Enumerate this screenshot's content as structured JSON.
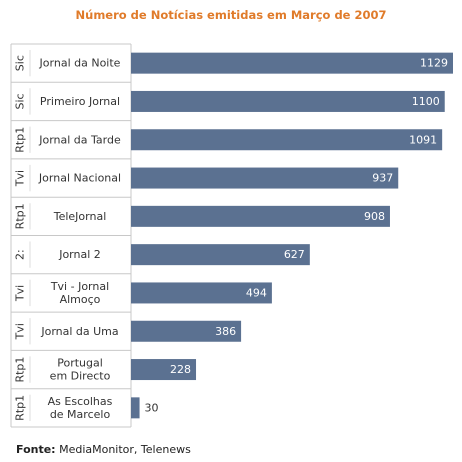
{
  "chart_data": {
    "type": "bar",
    "orientation": "horizontal",
    "title": "Número de Notícias emitidas em Março de 2007",
    "categories": [
      {
        "group": "Sic",
        "label": "Jornal da Noite"
      },
      {
        "group": "Sic",
        "label": "Primeiro Jornal"
      },
      {
        "group": "Rtp1",
        "label": "Jornal da Tarde"
      },
      {
        "group": "Tvi",
        "label": "Jornal Nacional"
      },
      {
        "group": "Rtp1",
        "label": "TeleJornal"
      },
      {
        "group": "2:",
        "label": "Jornal 2"
      },
      {
        "group": "Tvi",
        "label": "Tvi - Jornal Almoço"
      },
      {
        "group": "Tvi",
        "label": "Jornal da Uma"
      },
      {
        "group": "Rtp1",
        "label": "Portugal em Directo"
      },
      {
        "group": "Rtp1",
        "label": "As Escolhas de Marcelo"
      }
    ],
    "values": [
      1129,
      1100,
      1091,
      937,
      908,
      627,
      494,
      386,
      228,
      30
    ],
    "xlim": [
      0,
      1129
    ],
    "bar_color": "#5b7191",
    "data_labels": true,
    "grid": false,
    "legend": "none"
  },
  "footer": {
    "source_label": "Fonte:",
    "source_text": "MediaMonitor, Telenews"
  }
}
